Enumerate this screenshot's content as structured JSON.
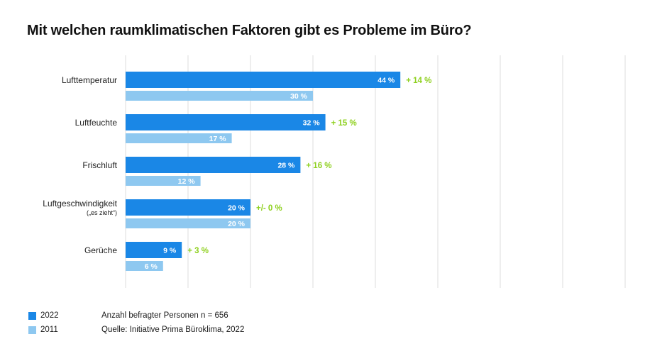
{
  "title": "Mit welchen raumklimatischen Faktoren gibt es Probleme im Büro?",
  "legend": {
    "items": [
      {
        "label": "2022",
        "color": "#1a87e6"
      },
      {
        "label": "2011",
        "color": "#8ec8f0"
      }
    ],
    "notes": [
      "Anzahl befragter Personen n = 656",
      "Quelle: Initiative Prima Büroklima, 2022"
    ]
  },
  "colors": {
    "bar_2022": "#1a87e6",
    "bar_2011": "#8ec8f0",
    "delta": "#8ed01e",
    "grid": "#dddddd"
  },
  "chart_data": {
    "type": "bar",
    "orientation": "horizontal",
    "categories": [
      {
        "label": "Lufttemperatur",
        "sublabel": ""
      },
      {
        "label": "Luftfeuchte",
        "sublabel": ""
      },
      {
        "label": "Frischluft",
        "sublabel": ""
      },
      {
        "label": "Luftgeschwindigkeit",
        "sublabel": "(„es zieht“)"
      },
      {
        "label": "Gerüche",
        "sublabel": ""
      }
    ],
    "series": [
      {
        "name": "2022",
        "values": [
          44,
          32,
          28,
          20,
          9
        ],
        "labels": [
          "44 %",
          "32 %",
          "28 %",
          "20 %",
          "9 %"
        ]
      },
      {
        "name": "2011",
        "values": [
          30,
          17,
          12,
          20,
          6
        ],
        "labels": [
          "30 %",
          "17 %",
          "12 %",
          "20 %",
          "6 %"
        ]
      }
    ],
    "deltas": [
      "+ 14 %",
      "+ 15 %",
      "+ 16 %",
      "+/- 0 %",
      "+ 3 %"
    ],
    "xlim": [
      0,
      80
    ],
    "grid": true,
    "legend_position": "bottom-left"
  }
}
